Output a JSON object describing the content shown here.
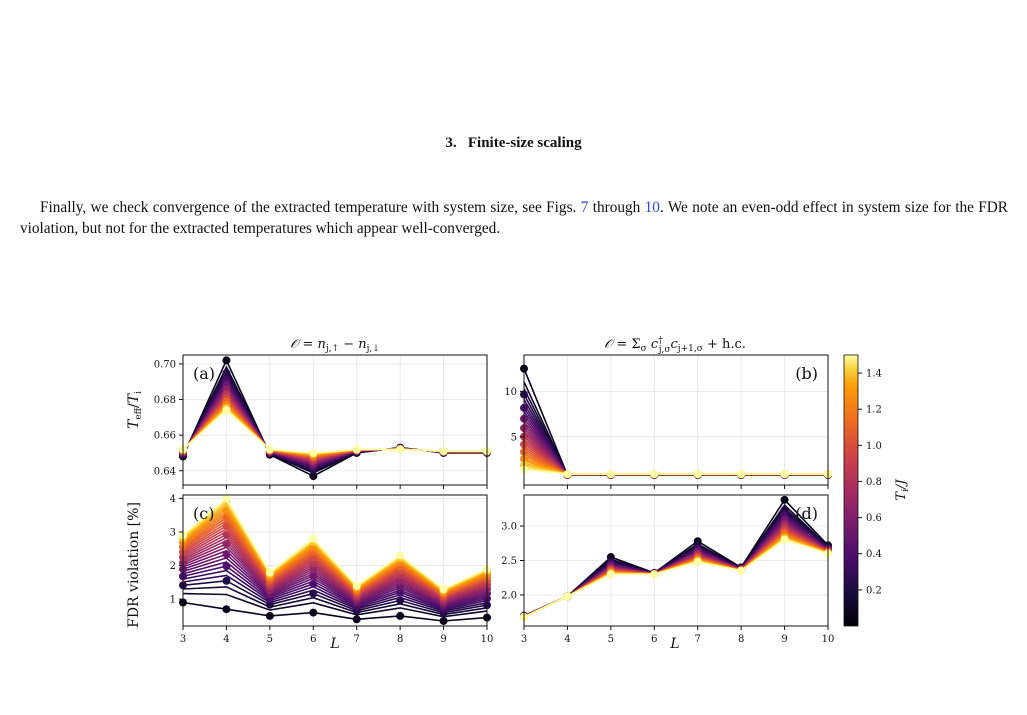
{
  "section": {
    "number": "3.",
    "title": "Finite-size scaling"
  },
  "paragraph": {
    "part1": "Finally, we check convergence of the extracted temperature with system size, see Figs. ",
    "ref1": "7",
    "part2": " through ",
    "ref2": "10",
    "part3": ". We note an even-odd effect in system size for the FDR violation, but not for the extracted temperatures which appear well-converged."
  },
  "figure": {
    "col_titles": [
      "𝒪 = n_{j,↑} − n_{j,↓}",
      "𝒪 = Σ_σ c†_{j,σ} c_{j+1,σ} + h.c."
    ],
    "xlabel": "L",
    "ylabels": [
      "T_eff/T_i",
      "FDR violation [%]"
    ],
    "colorbar": {
      "label": "T_i/J",
      "ticks": [
        "0.2",
        "0.4",
        "0.6",
        "0.8",
        "1.0",
        "1.2",
        "1.4"
      ],
      "range": [
        0.0,
        1.5
      ]
    },
    "colormap": "inferno"
  },
  "chart_data": [
    {
      "panel": "(a)",
      "type": "line",
      "x": [
        3,
        4,
        5,
        6,
        7,
        8,
        9,
        10
      ],
      "ylim": [
        0.632,
        0.705
      ],
      "yticks": [
        "0.64",
        "0.66",
        "0.68",
        "0.70"
      ],
      "xticks": [
        "3",
        "4",
        "5",
        "6",
        "7",
        "8",
        "9",
        "10"
      ],
      "series_low_T": [
        0.648,
        0.702,
        0.649,
        0.637,
        0.65,
        0.653,
        0.65,
        0.65
      ],
      "series_high_T": [
        0.652,
        0.674,
        0.652,
        0.65,
        0.652,
        0.652,
        0.651,
        0.651
      ],
      "grid": true
    },
    {
      "panel": "(b)",
      "type": "line",
      "x": [
        3,
        4,
        5,
        6,
        7,
        8,
        9,
        10
      ],
      "ylim": [
        -0.3,
        14.0
      ],
      "yticks": [
        "5",
        "10"
      ],
      "xticks": [
        "3",
        "4",
        "5",
        "6",
        "7",
        "8",
        "9",
        "10"
      ],
      "series_low_T": [
        12.5,
        0.8,
        0.8,
        0.8,
        0.8,
        0.8,
        0.8,
        0.8
      ],
      "series_high_T": [
        1.4,
        0.9,
        0.9,
        0.9,
        0.9,
        0.9,
        0.9,
        0.9
      ],
      "grid": true
    },
    {
      "panel": "(c)",
      "type": "line",
      "x": [
        3,
        4,
        5,
        6,
        7,
        8,
        9,
        10
      ],
      "ylim": [
        0.2,
        4.1
      ],
      "yticks": [
        "1",
        "2",
        "3",
        "4"
      ],
      "xticks": [
        "3",
        "4",
        "5",
        "6",
        "7",
        "8",
        "9",
        "10"
      ],
      "series_low_T": [
        0.9,
        0.7,
        0.5,
        0.6,
        0.4,
        0.5,
        0.35,
        0.45
      ],
      "series_high_T": [
        2.9,
        4.0,
        1.8,
        2.8,
        1.4,
        2.3,
        1.3,
        1.9
      ],
      "grid": true
    },
    {
      "panel": "(d)",
      "type": "line",
      "x": [
        3,
        4,
        5,
        6,
        7,
        8,
        9,
        10
      ],
      "ylim": [
        1.55,
        3.45
      ],
      "yticks": [
        "2.0",
        "2.5",
        "3.0"
      ],
      "xticks": [
        "3",
        "4",
        "5",
        "6",
        "7",
        "8",
        "9",
        "10"
      ],
      "series_low_T": [
        1.7,
        1.98,
        2.55,
        2.32,
        2.78,
        2.4,
        3.38,
        2.72
      ],
      "series_high_T": [
        1.68,
        1.98,
        2.3,
        2.3,
        2.48,
        2.35,
        2.8,
        2.6
      ],
      "grid": true
    }
  ]
}
